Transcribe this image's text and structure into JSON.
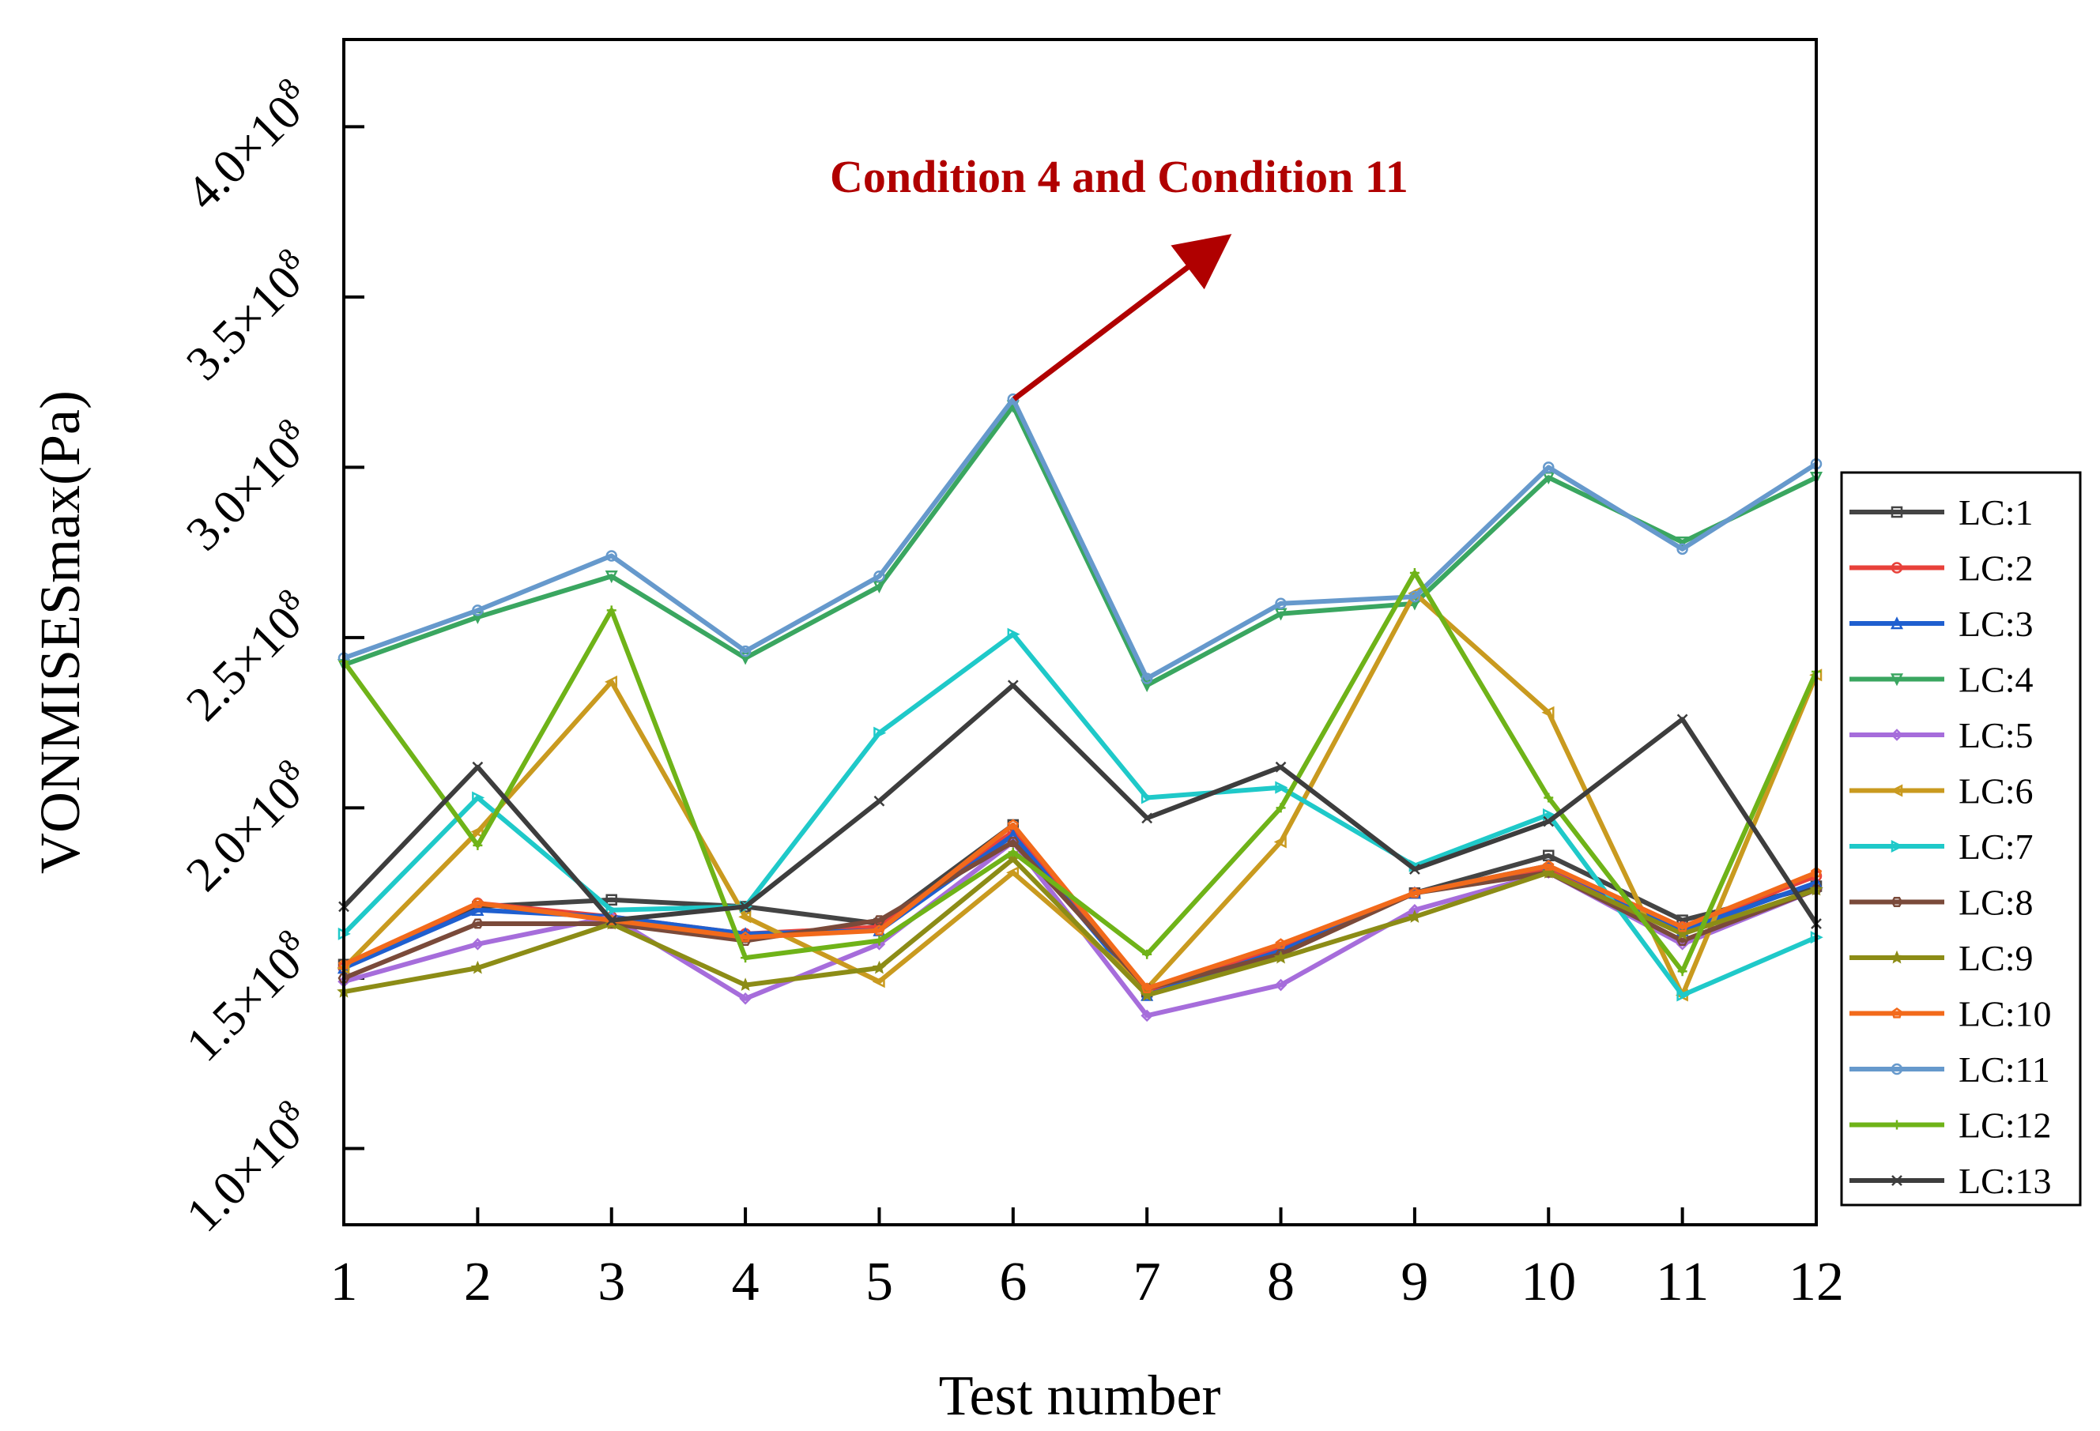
{
  "chart_data": {
    "type": "line",
    "title": "",
    "xlabel": "Test number",
    "ylabel": "VONMISESmax(Pa)",
    "x": [
      1,
      2,
      3,
      4,
      5,
      6,
      7,
      8,
      9,
      10,
      11,
      12
    ],
    "xlim": [
      1,
      12
    ],
    "ylim": [
      77600000,
      425600000
    ],
    "yticks": [
      100000000,
      150000000,
      200000000,
      250000000,
      300000000,
      350000000,
      400000000
    ],
    "ytick_mantissas": [
      "1.0",
      "1.5",
      "2.0",
      "2.5",
      "3.0",
      "3.5",
      "4.0"
    ],
    "ytick_times": "×10",
    "ytick_exp": "8",
    "legend_position": "right",
    "annotation": {
      "text": "Condition 4 and Condition 11",
      "color": "#b00000",
      "points_to": [
        6,
        320000000
      ]
    },
    "series": [
      {
        "name": "LC:1",
        "color": "#444444",
        "marker": "square",
        "values": [
          154000000,
          171000000,
          173000000,
          171000000,
          166000000,
          195000000,
          146000000,
          158000000,
          175000000,
          186000000,
          167000000,
          177000000
        ]
      },
      {
        "name": "LC:2",
        "color": "#e8413a",
        "marker": "circle",
        "values": [
          153000000,
          172000000,
          168000000,
          163000000,
          165000000,
          193000000,
          146000000,
          159000000,
          175000000,
          182000000,
          165000000,
          180000000
        ]
      },
      {
        "name": "LC:3",
        "color": "#1f5fcf",
        "marker": "triangle",
        "values": [
          153000000,
          170000000,
          168000000,
          163000000,
          164000000,
          192000000,
          145000000,
          158000000,
          175000000,
          183000000,
          164000000,
          178000000
        ]
      },
      {
        "name": "LC:4",
        "color": "#3aa660",
        "marker": "triangle-down",
        "values": [
          242000000,
          256000000,
          268000000,
          244000000,
          265000000,
          318000000,
          236000000,
          257000000,
          260000000,
          297000000,
          278000000,
          297000000
        ]
      },
      {
        "name": "LC:5",
        "color": "#a66ddb",
        "marker": "diamond",
        "values": [
          149000000,
          160000000,
          168000000,
          144000000,
          160000000,
          190000000,
          139000000,
          148000000,
          170000000,
          181000000,
          160000000,
          176000000
        ]
      },
      {
        "name": "LC:6",
        "color": "#c99a1f",
        "marker": "triangle-left",
        "values": [
          153000000,
          193000000,
          237000000,
          168000000,
          149000000,
          181000000,
          147000000,
          190000000,
          263000000,
          228000000,
          145000000,
          239000000
        ]
      },
      {
        "name": "LC:7",
        "color": "#1fc9c9",
        "marker": "triangle-right",
        "values": [
          163000000,
          203000000,
          170000000,
          171000000,
          222000000,
          251000000,
          203000000,
          206000000,
          183000000,
          198000000,
          145000000,
          162000000
        ]
      },
      {
        "name": "LC:8",
        "color": "#7a4a3a",
        "marker": "hexagon",
        "values": [
          150000000,
          166000000,
          166000000,
          161000000,
          167000000,
          190000000,
          147000000,
          157000000,
          175000000,
          181000000,
          161000000,
          176000000
        ]
      },
      {
        "name": "LC:9",
        "color": "#8c8c16",
        "marker": "star",
        "values": [
          146000000,
          153000000,
          166000000,
          148000000,
          153000000,
          185000000,
          145000000,
          156000000,
          168000000,
          181000000,
          163000000,
          176000000
        ]
      },
      {
        "name": "LC:10",
        "color": "#f26a1b",
        "marker": "pentagon",
        "values": [
          154000000,
          172000000,
          167000000,
          162000000,
          164000000,
          195000000,
          147000000,
          160000000,
          175000000,
          183000000,
          165000000,
          181000000
        ]
      },
      {
        "name": "LC:11",
        "color": "#6699cc",
        "marker": "circle",
        "values": [
          244000000,
          258000000,
          274000000,
          246000000,
          268000000,
          320000000,
          238000000,
          260000000,
          262000000,
          300000000,
          276000000,
          301000000
        ]
      },
      {
        "name": "LC:12",
        "color": "#6fb318",
        "marker": "plus",
        "values": [
          243000000,
          189000000,
          258000000,
          156000000,
          161000000,
          187000000,
          157000000,
          200000000,
          269000000,
          203000000,
          152000000,
          240000000
        ]
      },
      {
        "name": "LC:13",
        "color": "#3d3d3d",
        "marker": "x",
        "values": [
          171000000,
          212000000,
          167000000,
          171000000,
          202000000,
          236000000,
          197000000,
          212000000,
          182000000,
          196000000,
          226000000,
          166000000
        ]
      }
    ]
  }
}
